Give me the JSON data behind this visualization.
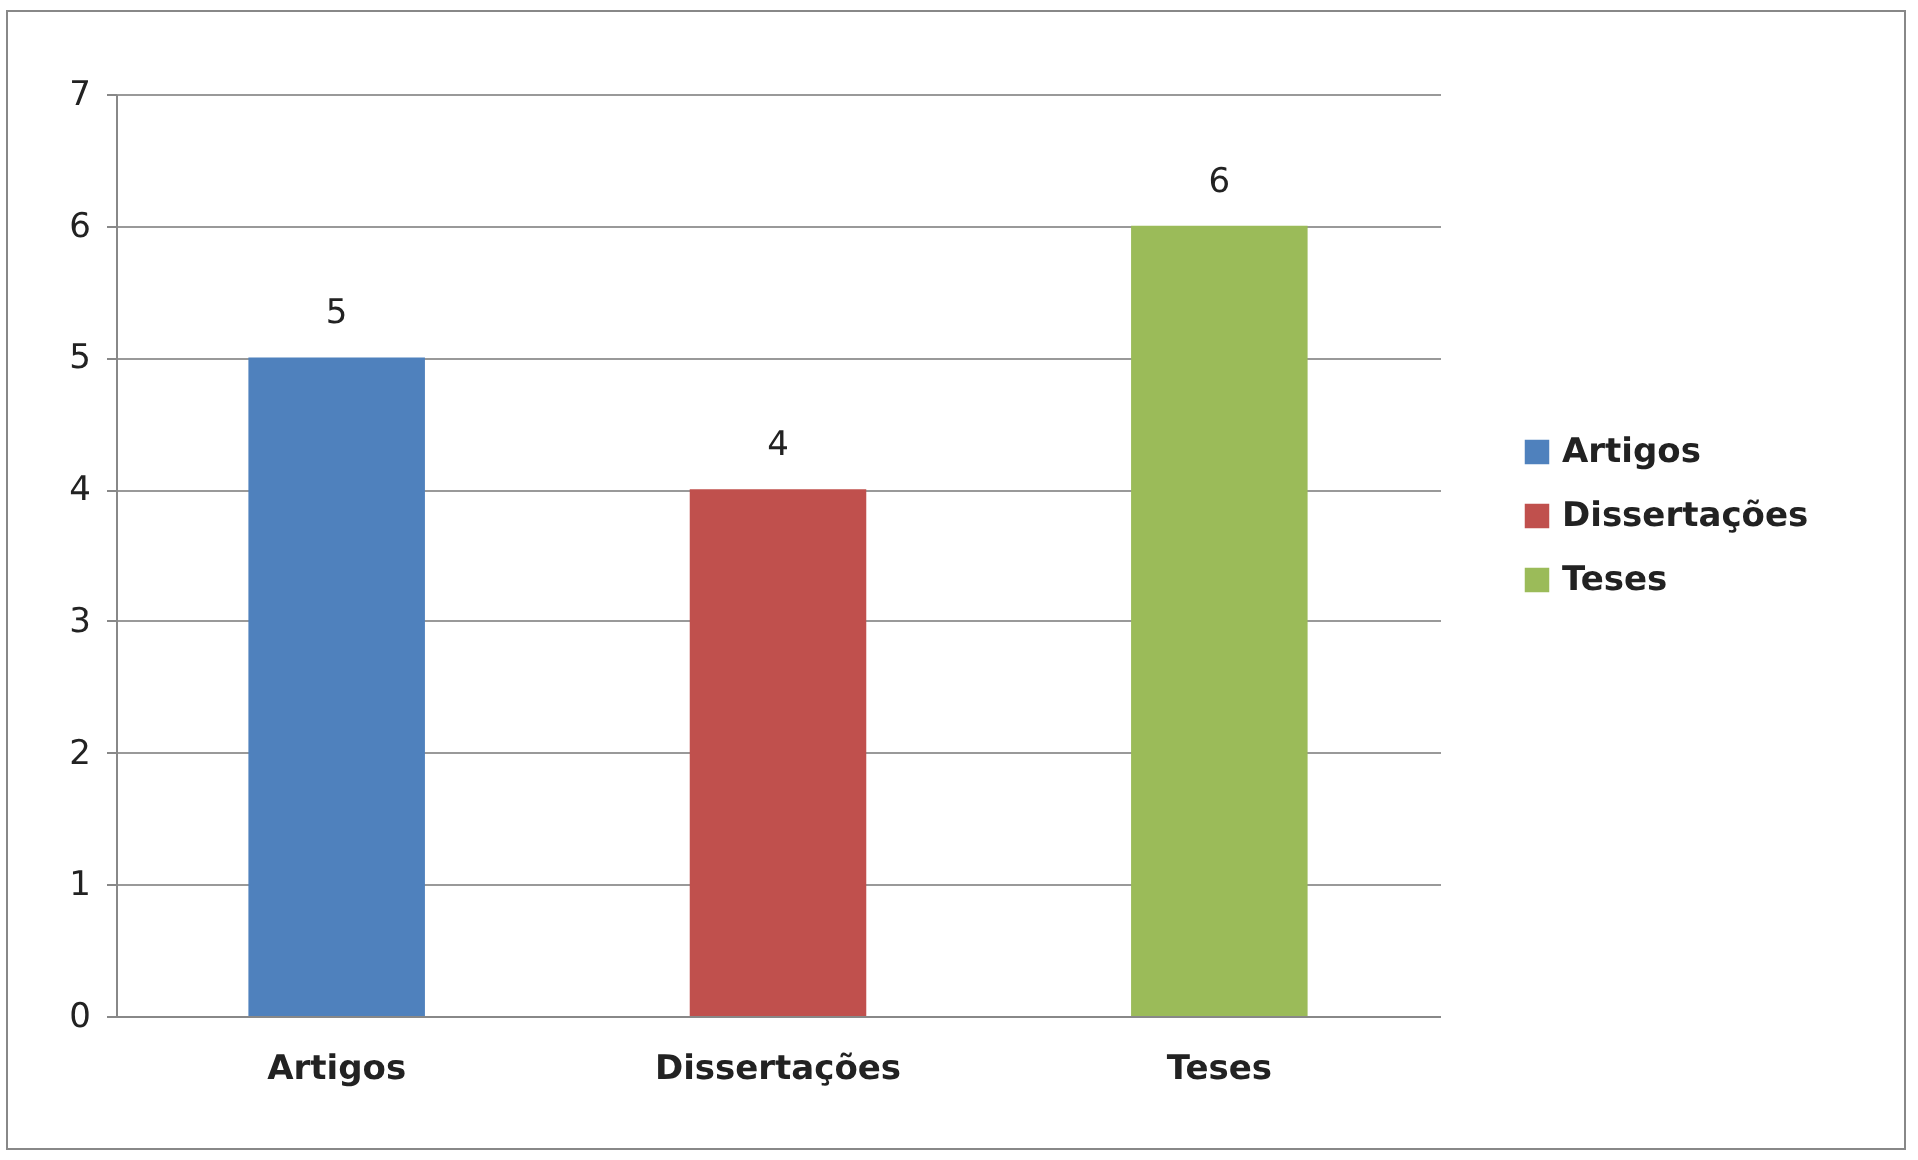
{
  "chart_data": {
    "type": "bar",
    "categories": [
      "Artigos",
      "Dissertações",
      "Teses"
    ],
    "series": [
      {
        "name": "Artigos",
        "color": "#4f81bd",
        "values": [
          5,
          null,
          null
        ]
      },
      {
        "name": "Dissertações",
        "color": "#c0504d",
        "values": [
          null,
          4,
          null
        ]
      },
      {
        "name": "Teses",
        "color": "#9bbb59",
        "values": [
          null,
          null,
          6
        ]
      }
    ],
    "ylim": [
      0,
      7
    ],
    "yticks": [
      0,
      1,
      2,
      3,
      4,
      5,
      6,
      7
    ],
    "grid": "y",
    "legend": "right",
    "data_labels": true
  }
}
